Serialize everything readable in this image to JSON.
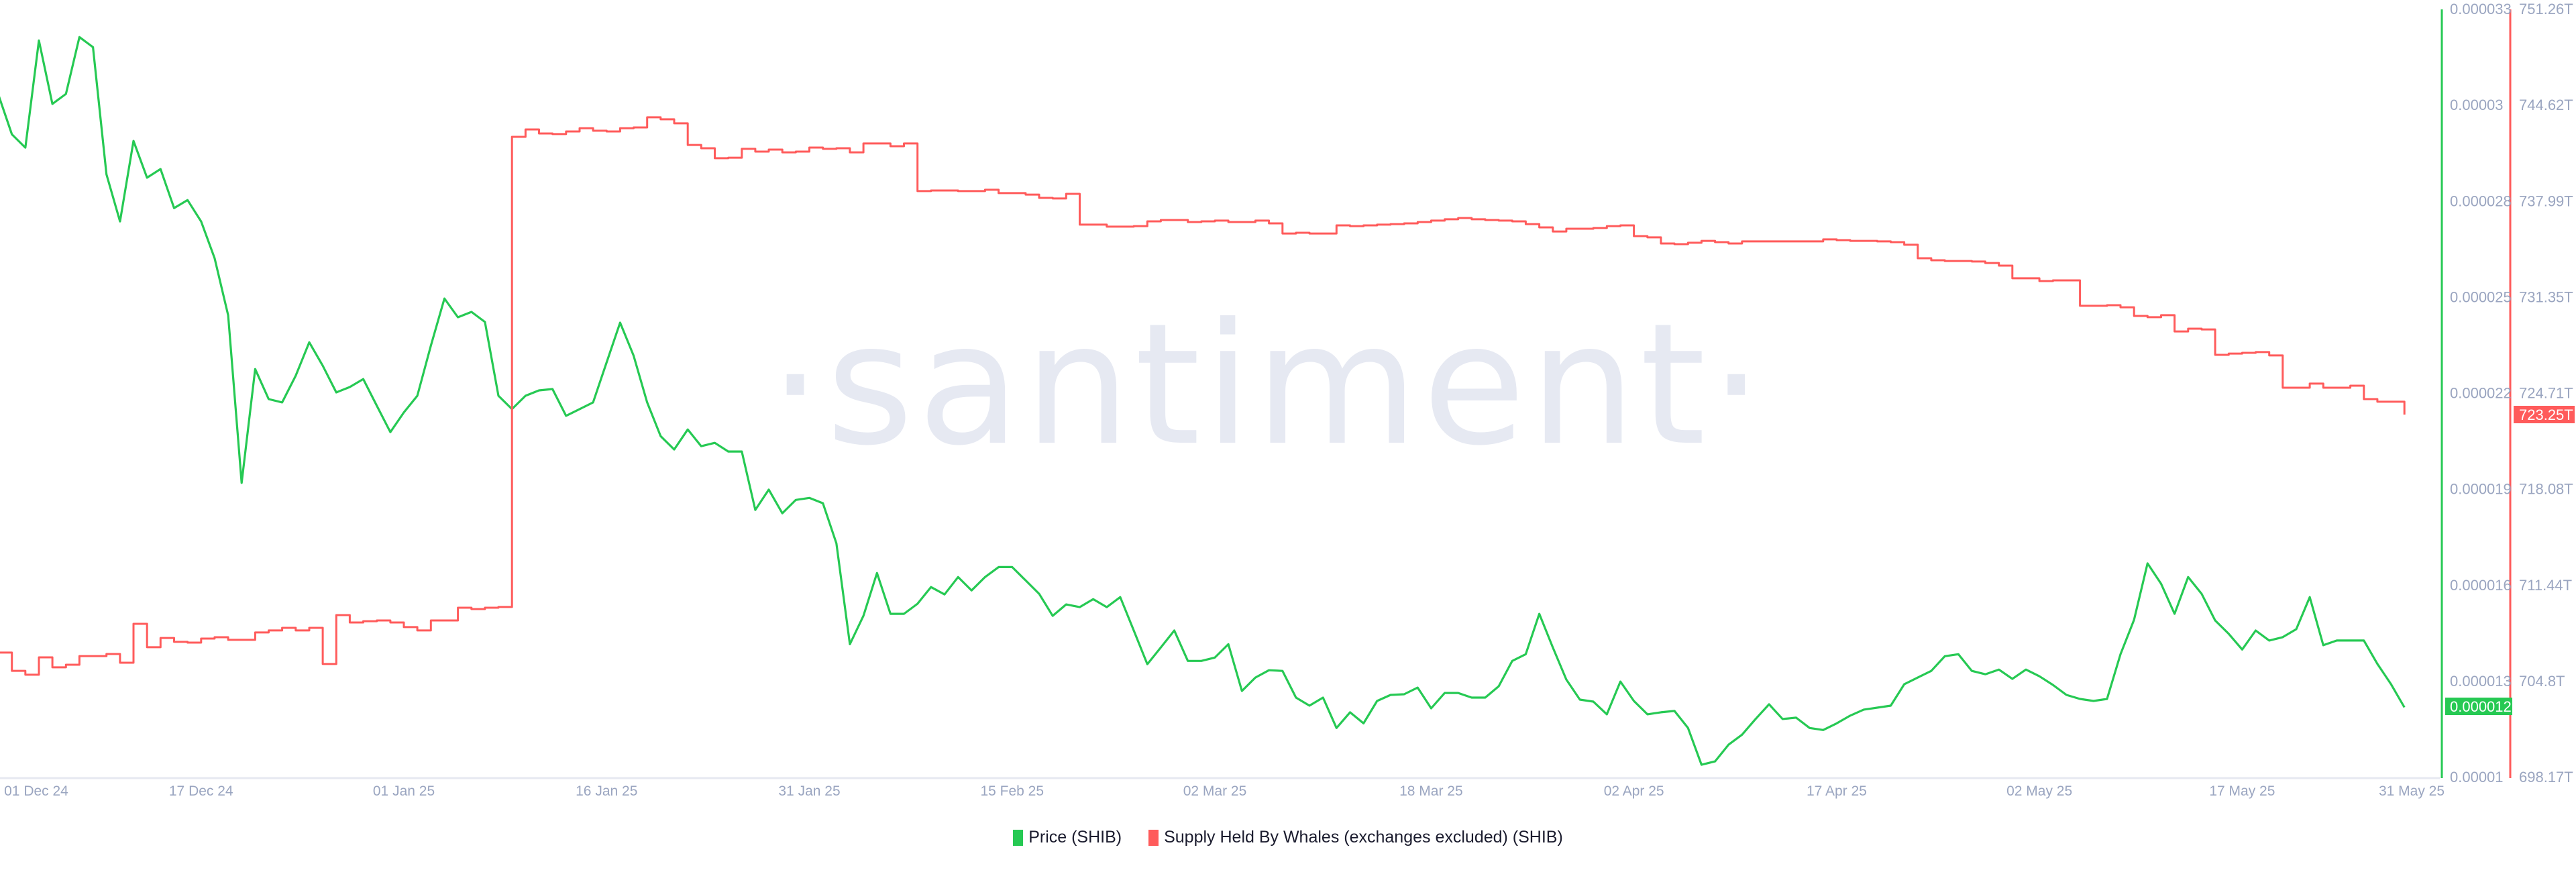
{
  "watermark": "·santiment·",
  "legend": [
    {
      "label": "Price (SHIB)",
      "color": "#26c953"
    },
    {
      "label": "Supply Held By Whales (exchanges excluded) (SHIB)",
      "color": "#ff5b5b"
    }
  ],
  "chart_data": {
    "type": "line",
    "title": "",
    "grid": false,
    "legend_position": "bottom",
    "x_axis": {
      "type": "date",
      "range": [
        "2024-12-02",
        "2025-05-29"
      ],
      "tick_labels": [
        {
          "label": "01 Dec 24",
          "date": "2024-12-01"
        },
        {
          "label": "17 Dec 24",
          "date": "2024-12-17"
        },
        {
          "label": "01 Jan 25",
          "date": "2025-01-01"
        },
        {
          "label": "16 Jan 25",
          "date": "2025-01-16"
        },
        {
          "label": "31 Jan 25",
          "date": "2025-01-31"
        },
        {
          "label": "15 Feb 25",
          "date": "2025-02-15"
        },
        {
          "label": "02 Mar 25",
          "date": "2025-03-02"
        },
        {
          "label": "18 Mar 25",
          "date": "2025-03-18"
        },
        {
          "label": "02 Apr 25",
          "date": "2025-04-02"
        },
        {
          "label": "17 Apr 25",
          "date": "2025-04-17"
        },
        {
          "label": "02 May 25",
          "date": "2025-05-02"
        },
        {
          "label": "17 May 25",
          "date": "2025-05-17"
        },
        {
          "label": "31 May 25",
          "date": "2025-05-31"
        }
      ]
    },
    "y_axes": [
      {
        "id": "price",
        "position": "right-inner",
        "color": "#26c953",
        "range": [
          1e-05,
          3.3e-05
        ],
        "tick_labels": [
          "0.000033",
          "0.00003",
          "0.000028",
          "0.000025",
          "0.000022",
          "0.000019",
          "0.000016",
          "0.000013",
          "0.00001"
        ],
        "current_value_label": "0.000012"
      },
      {
        "id": "supply",
        "position": "right-outer",
        "color": "#ff5b5b",
        "range": [
          698.17,
          751.26
        ],
        "unit": "T",
        "tick_labels": [
          "751.26T",
          "744.62T",
          "737.99T",
          "731.35T",
          "724.71T",
          "718.08T",
          "711.44T",
          "704.8T",
          "698.17T"
        ],
        "current_value_label": "723.25T"
      }
    ],
    "x": [
      "2024-12-02",
      "2024-12-03",
      "2024-12-04",
      "2024-12-05",
      "2024-12-06",
      "2024-12-07",
      "2024-12-08",
      "2024-12-09",
      "2024-12-10",
      "2024-12-11",
      "2024-12-12",
      "2024-12-13",
      "2024-12-14",
      "2024-12-15",
      "2024-12-16",
      "2024-12-17",
      "2024-12-18",
      "2024-12-19",
      "2024-12-20",
      "2024-12-21",
      "2024-12-22",
      "2024-12-23",
      "2024-12-24",
      "2024-12-25",
      "2024-12-26",
      "2024-12-27",
      "2024-12-28",
      "2024-12-29",
      "2024-12-30",
      "2024-12-31",
      "2025-01-01",
      "2025-01-02",
      "2025-01-03",
      "2025-01-04",
      "2025-01-05",
      "2025-01-06",
      "2025-01-07",
      "2025-01-08",
      "2025-01-09",
      "2025-01-10",
      "2025-01-11",
      "2025-01-12",
      "2025-01-13",
      "2025-01-14",
      "2025-01-15",
      "2025-01-16",
      "2025-01-17",
      "2025-01-18",
      "2025-01-19",
      "2025-01-20",
      "2025-01-21",
      "2025-01-22",
      "2025-01-23",
      "2025-01-24",
      "2025-01-25",
      "2025-01-26",
      "2025-01-27",
      "2025-01-28",
      "2025-01-29",
      "2025-01-30",
      "2025-01-31",
      "2025-02-01",
      "2025-02-02",
      "2025-02-03",
      "2025-02-04",
      "2025-02-05",
      "2025-02-06",
      "2025-02-07",
      "2025-02-08",
      "2025-02-09",
      "2025-02-10",
      "2025-02-11",
      "2025-02-12",
      "2025-02-13",
      "2025-02-14",
      "2025-02-15",
      "2025-02-16",
      "2025-02-17",
      "2025-02-18",
      "2025-02-19",
      "2025-02-20",
      "2025-02-21",
      "2025-02-22",
      "2025-02-23",
      "2025-02-24",
      "2025-02-25",
      "2025-02-26",
      "2025-02-27",
      "2025-02-28",
      "2025-03-01",
      "2025-03-02",
      "2025-03-03",
      "2025-03-04",
      "2025-03-05",
      "2025-03-06",
      "2025-03-07",
      "2025-03-08",
      "2025-03-09",
      "2025-03-10",
      "2025-03-11",
      "2025-03-12",
      "2025-03-13",
      "2025-03-14",
      "2025-03-15",
      "2025-03-16",
      "2025-03-17",
      "2025-03-18",
      "2025-03-19",
      "2025-03-20",
      "2025-03-21",
      "2025-03-22",
      "2025-03-23",
      "2025-03-24",
      "2025-03-25",
      "2025-03-26",
      "2025-03-27",
      "2025-03-28",
      "2025-03-29",
      "2025-03-30",
      "2025-03-31",
      "2025-04-01",
      "2025-04-02",
      "2025-04-03",
      "2025-04-04",
      "2025-04-05",
      "2025-04-06",
      "2025-04-07",
      "2025-04-08",
      "2025-04-09",
      "2025-04-10",
      "2025-04-11",
      "2025-04-12",
      "2025-04-13",
      "2025-04-14",
      "2025-04-15",
      "2025-04-16",
      "2025-04-17",
      "2025-04-18",
      "2025-04-19",
      "2025-04-20",
      "2025-04-21",
      "2025-04-22",
      "2025-04-23",
      "2025-04-24",
      "2025-04-25",
      "2025-04-26",
      "2025-04-27",
      "2025-04-28",
      "2025-04-29",
      "2025-04-30",
      "2025-05-01",
      "2025-05-02",
      "2025-05-03",
      "2025-05-04",
      "2025-05-05",
      "2025-05-06",
      "2025-05-07",
      "2025-05-08",
      "2025-05-09",
      "2025-05-10",
      "2025-05-11",
      "2025-05-12",
      "2025-05-13",
      "2025-05-14",
      "2025-05-15",
      "2025-05-16",
      "2025-05-17",
      "2025-05-18",
      "2025-05-19",
      "2025-05-20",
      "2025-05-21",
      "2025-05-22",
      "2025-05-23",
      "2025-05-24",
      "2025-05-25",
      "2025-05-26",
      "2025-05-27",
      "2025-05-28",
      "2025-05-29"
    ],
    "series": [
      {
        "name": "Price (SHIB)",
        "axis": "price",
        "color": "#26c953",
        "values": [
          3.045e-05,
          2.926e-05,
          2.886e-05,
          3.207e-05,
          3.017e-05,
          3.047e-05,
          3.217e-05,
          3.187e-05,
          2.806e-05,
          2.665e-05,
          2.906e-05,
          2.796e-05,
          2.822e-05,
          2.705e-05,
          2.729e-05,
          2.665e-05,
          2.555e-05,
          2.384e-05,
          1.882e-05,
          2.223e-05,
          2.133e-05,
          2.123e-05,
          2.203e-05,
          2.303e-05,
          2.233e-05,
          2.153e-05,
          2.169e-05,
          2.193e-05,
          2.113e-05,
          2.034e-05,
          2.093e-05,
          2.143e-05,
          2.293e-05,
          2.434e-05,
          2.378e-05,
          2.394e-05,
          2.364e-05,
          2.143e-05,
          2.103e-05,
          2.143e-05,
          2.159e-05,
          2.163e-05,
          2.083e-05,
          2.103e-05,
          2.123e-05,
          2.243e-05,
          2.362e-05,
          2.263e-05,
          2.123e-05,
          2.022e-05,
          1.982e-05,
          2.042e-05,
          1.992e-05,
          2.002e-05,
          1.976e-05,
          1.976e-05,
          1.801e-05,
          1.862e-05,
          1.791e-05,
          1.831e-05,
          1.837e-05,
          1.821e-05,
          1.701e-05,
          1.399e-05,
          1.484e-05,
          1.612e-05,
          1.49e-05,
          1.49e-05,
          1.52e-05,
          1.57e-05,
          1.548e-05,
          1.6e-05,
          1.56e-05,
          1.6e-05,
          1.63e-05,
          1.63e-05,
          1.59e-05,
          1.55e-05,
          1.484e-05,
          1.518e-05,
          1.51e-05,
          1.534e-05,
          1.51e-05,
          1.54e-05,
          1.44e-05,
          1.339e-05,
          1.389e-05,
          1.44e-05,
          1.349e-05,
          1.349e-05,
          1.359e-05,
          1.399e-05,
          1.259e-05,
          1.299e-05,
          1.321e-05,
          1.319e-05,
          1.239e-05,
          1.215e-05,
          1.239e-05,
          1.148e-05,
          1.195e-05,
          1.162e-05,
          1.229e-05,
          1.247e-05,
          1.249e-05,
          1.269e-05,
          1.207e-05,
          1.253e-05,
          1.253e-05,
          1.239e-05,
          1.239e-05,
          1.273e-05,
          1.349e-05,
          1.369e-05,
          1.49e-05,
          1.389e-05,
          1.293e-05,
          1.233e-05,
          1.227e-05,
          1.189e-05,
          1.287e-05,
          1.229e-05,
          1.189e-05,
          1.195e-05,
          1.199e-05,
          1.148e-05,
          1.038e-05,
          1.048e-05,
          1.098e-05,
          1.128e-05,
          1.175e-05,
          1.219e-05,
          1.175e-05,
          1.179e-05,
          1.148e-05,
          1.142e-05,
          1.162e-05,
          1.185e-05,
          1.203e-05,
          1.209e-05,
          1.215e-05,
          1.279e-05,
          1.299e-05,
          1.319e-05,
          1.363e-05,
          1.369e-05,
          1.319e-05,
          1.309e-05,
          1.323e-05,
          1.295e-05,
          1.323e-05,
          1.303e-05,
          1.277e-05,
          1.247e-05,
          1.235e-05,
          1.229e-05,
          1.235e-05,
          1.369e-05,
          1.472e-05,
          1.641e-05,
          1.58e-05,
          1.49e-05,
          1.6e-05,
          1.55e-05,
          1.47e-05,
          1.43e-05,
          1.383e-05,
          1.44e-05,
          1.41e-05,
          1.42e-05,
          1.444e-05,
          1.54e-05,
          1.396e-05,
          1.41e-05,
          1.41e-05,
          1.41e-05,
          1.34e-05,
          1.28e-05,
          1.21e-05
        ]
      },
      {
        "name": "Supply Held By Whales (exchanges excluded) (SHIB)",
        "axis": "supply",
        "unit": "T",
        "color": "#ff5b5b",
        "values": [
          706.8,
          705.54,
          705.27,
          706.47,
          705.78,
          705.96,
          706.56,
          706.56,
          706.7,
          706.1,
          708.79,
          707.17,
          707.81,
          707.54,
          707.49,
          707.77,
          707.86,
          707.68,
          707.68,
          708.19,
          708.33,
          708.51,
          708.33,
          708.51,
          706.01,
          709.39,
          708.88,
          708.97,
          709.02,
          708.88,
          708.56,
          708.33,
          709.02,
          709.02,
          709.9,
          709.81,
          709.9,
          709.95,
          742.45,
          742.96,
          742.68,
          742.64,
          742.82,
          743.05,
          742.87,
          742.82,
          743.05,
          743.1,
          743.8,
          743.66,
          743.38,
          741.89,
          741.66,
          740.97,
          741.01,
          741.62,
          741.43,
          741.57,
          741.38,
          741.43,
          741.71,
          741.62,
          741.66,
          741.38,
          741.99,
          741.99,
          741.8,
          741.99,
          738.7,
          738.74,
          738.74,
          738.7,
          738.7,
          738.79,
          738.56,
          738.56,
          738.46,
          738.23,
          738.19,
          738.51,
          736.38,
          736.38,
          736.24,
          736.24,
          736.28,
          736.61,
          736.7,
          736.7,
          736.56,
          736.61,
          736.66,
          736.56,
          736.56,
          736.66,
          736.47,
          735.77,
          735.82,
          735.77,
          735.77,
          736.33,
          736.28,
          736.33,
          736.38,
          736.42,
          736.47,
          736.56,
          736.66,
          736.75,
          736.84,
          736.75,
          736.7,
          736.66,
          736.61,
          736.42,
          736.19,
          735.91,
          736.1,
          736.1,
          736.15,
          736.28,
          736.33,
          735.59,
          735.5,
          735.08,
          735.03,
          735.13,
          735.26,
          735.17,
          735.08,
          735.22,
          735.22,
          735.22,
          735.22,
          735.22,
          735.22,
          735.36,
          735.31,
          735.26,
          735.26,
          735.22,
          735.17,
          734.99,
          734.06,
          733.92,
          733.87,
          733.87,
          733.83,
          733.73,
          733.55,
          732.67,
          732.67,
          732.48,
          732.53,
          732.53,
          730.77,
          730.77,
          730.81,
          730.67,
          730.07,
          729.98,
          730.12,
          729.0,
          729.19,
          729.14,
          727.38,
          727.47,
          727.52,
          727.57,
          727.34,
          725.11,
          725.11,
          725.39,
          725.11,
          725.11,
          725.25,
          724.32,
          724.14,
          724.14,
          723.25
        ]
      }
    ]
  }
}
